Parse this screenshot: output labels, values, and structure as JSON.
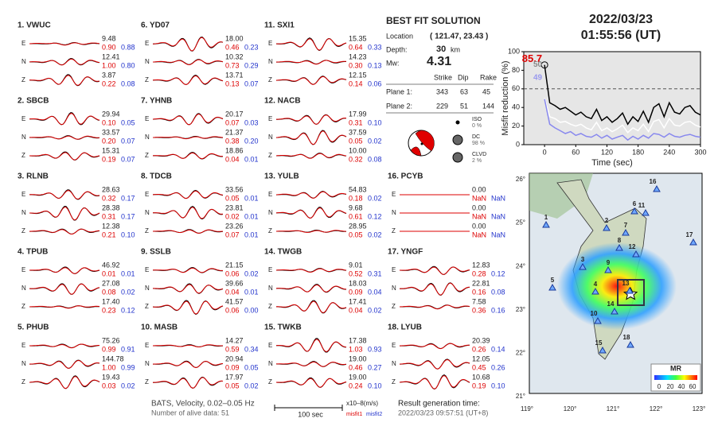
{
  "stations": [
    {
      "title": "1.  VWUC",
      "comps": [
        [
          "E",
          "9.48",
          "0.90",
          "0.88"
        ],
        [
          "N",
          "12.41",
          "1.00",
          "0.80"
        ],
        [
          "Z",
          "3.87",
          "0.22",
          "0.08"
        ]
      ]
    },
    {
      "title": "2.  SBCB",
      "comps": [
        [
          "E",
          "29.94",
          "0.10",
          "0.05"
        ],
        [
          "N",
          "33.57",
          "0.20",
          "0.07"
        ],
        [
          "Z",
          "15.31",
          "0.19",
          "0.07"
        ]
      ]
    },
    {
      "title": "3.  RLNB",
      "comps": [
        [
          "E",
          "28.63",
          "0.32",
          "0.17"
        ],
        [
          "N",
          "28.38",
          "0.31",
          "0.17"
        ],
        [
          "Z",
          "12.38",
          "0.21",
          "0.10"
        ]
      ]
    },
    {
      "title": "4.  TPUB",
      "comps": [
        [
          "E",
          "46.92",
          "0.01",
          "0.01"
        ],
        [
          "N",
          "27.08",
          "0.08",
          "0.02"
        ],
        [
          "Z",
          "17.40",
          "0.23",
          "0.12"
        ]
      ]
    },
    {
      "title": "5.  PHUB",
      "comps": [
        [
          "E",
          "75.26",
          "0.99",
          "0.91"
        ],
        [
          "N",
          "144.78",
          "1.00",
          "0.99"
        ],
        [
          "Z",
          "19.43",
          "0.03",
          "0.02"
        ]
      ]
    },
    {
      "title": "6.  YD07",
      "comps": [
        [
          "E",
          "18.00",
          "0.46",
          "0.23"
        ],
        [
          "N",
          "10.32",
          "0.73",
          "0.29"
        ],
        [
          "Z",
          "13.71",
          "0.13",
          "0.07"
        ]
      ]
    },
    {
      "title": "7.  YHNB",
      "comps": [
        [
          "E",
          "20.17",
          "0.07",
          "0.03"
        ],
        [
          "N",
          "21.37",
          "0.38",
          "0.20"
        ],
        [
          "Z",
          "18.86",
          "0.04",
          "0.01"
        ]
      ]
    },
    {
      "title": "8.  TDCB",
      "comps": [
        [
          "E",
          "33.56",
          "0.05",
          "0.01"
        ],
        [
          "N",
          "23.81",
          "0.02",
          "0.01"
        ],
        [
          "Z",
          "23.26",
          "0.07",
          "0.01"
        ]
      ]
    },
    {
      "title": "9.  SSLB",
      "comps": [
        [
          "E",
          "21.15",
          "0.06",
          "0.02"
        ],
        [
          "N",
          "39.66",
          "0.04",
          "0.01"
        ],
        [
          "Z",
          "41.57",
          "0.06",
          "0.00"
        ]
      ]
    },
    {
      "title": "10. MASB",
      "comps": [
        [
          "E",
          "14.27",
          "0.59",
          "0.34"
        ],
        [
          "N",
          "20.94",
          "0.09",
          "0.05"
        ],
        [
          "Z",
          "17.97",
          "0.05",
          "0.02"
        ]
      ]
    },
    {
      "title": "11. SXI1",
      "comps": [
        [
          "E",
          "15.35",
          "0.64",
          "0.33"
        ],
        [
          "N",
          "14.23",
          "0.30",
          "0.13"
        ],
        [
          "Z",
          "12.15",
          "0.14",
          "0.06"
        ]
      ]
    },
    {
      "title": "12. NACB",
      "comps": [
        [
          "E",
          "17.99",
          "0.31",
          "0.10"
        ],
        [
          "N",
          "37.59",
          "0.05",
          "0.02"
        ],
        [
          "Z",
          "10.00",
          "0.32",
          "0.08"
        ]
      ]
    },
    {
      "title": "13. YULB",
      "comps": [
        [
          "E",
          "54.83",
          "0.18",
          "0.02"
        ],
        [
          "N",
          "9.68",
          "0.61",
          "0.12"
        ],
        [
          "Z",
          "28.95",
          "0.05",
          "0.02"
        ]
      ]
    },
    {
      "title": "14. TWGB",
      "comps": [
        [
          "E",
          "9.01",
          "0.52",
          "0.31"
        ],
        [
          "N",
          "18.03",
          "0.09",
          "0.04"
        ],
        [
          "Z",
          "17.41",
          "0.04",
          "0.02"
        ]
      ]
    },
    {
      "title": "15. TWKB",
      "comps": [
        [
          "E",
          "17.38",
          "1.03",
          "0.93"
        ],
        [
          "N",
          "19.00",
          "0.46",
          "0.27"
        ],
        [
          "Z",
          "19.00",
          "0.24",
          "0.10"
        ]
      ]
    },
    {
      "title": "16. PCYB",
      "comps": [
        [
          "E",
          "0.00",
          "NaN",
          "NaN"
        ],
        [
          "N",
          "0.00",
          "NaN",
          "NaN"
        ],
        [
          "Z",
          "0.00",
          "NaN",
          "NaN"
        ]
      ]
    },
    {
      "title": "17. YNGF",
      "comps": [
        [
          "E",
          "12.83",
          "0.28",
          "0.12"
        ],
        [
          "N",
          "22.81",
          "0.16",
          "0.08"
        ],
        [
          "Z",
          "7.58",
          "0.36",
          "0.16"
        ]
      ]
    },
    {
      "title": "18. LYUB",
      "comps": [
        [
          "E",
          "20.39",
          "0.26",
          "0.14"
        ],
        [
          "N",
          "12.05",
          "0.45",
          "0.26"
        ],
        [
          "Z",
          "10.68",
          "0.19",
          "0.10"
        ]
      ]
    }
  ],
  "solution": {
    "title": "BEST FIT SOLUTION",
    "location_label": "Location",
    "location": "( 121.47, 23.43 )",
    "depth_label": "Depth:",
    "depth": "30",
    "depth_unit": "km",
    "mw_label": "Mw:",
    "mw": "4.31",
    "columns": [
      "Strike",
      "Dip",
      "Rake"
    ],
    "planes": [
      [
        "Plane 1:",
        "343",
        "63",
        "45"
      ],
      [
        "Plane 2:",
        "229",
        "51",
        "144"
      ]
    ],
    "components": [
      [
        "ISO",
        "0 %"
      ],
      [
        "DC",
        "98 %"
      ],
      [
        "CLVD",
        "2 %"
      ]
    ]
  },
  "date": "2022/03/23",
  "time": "01:55:56  (UT)",
  "chart_data": {
    "type": "line",
    "xlabel": "Time (sec)",
    "ylabel": "Misfit reduction (%)",
    "xlim": [
      -40,
      300
    ],
    "xticks": [
      0,
      60,
      120,
      180,
      240,
      300
    ],
    "ylim": [
      0,
      100
    ],
    "yticks": [
      0,
      20,
      40,
      60,
      80,
      100
    ],
    "threshold": 60,
    "annotations": [
      {
        "text": "85.7",
        "x": 0,
        "y": 85.7,
        "color": "#d00"
      },
      {
        "text": "50",
        "x": 0,
        "y": 80,
        "color": "#888"
      },
      {
        "text": "49",
        "x": 0,
        "y": 66,
        "color": "#9999ee"
      }
    ],
    "x": [
      0,
      10,
      20,
      30,
      40,
      50,
      60,
      70,
      80,
      90,
      100,
      110,
      120,
      130,
      140,
      150,
      160,
      170,
      180,
      190,
      200,
      210,
      220,
      230,
      240,
      250,
      260,
      270,
      280,
      290,
      300
    ],
    "series": [
      {
        "color": "#ffffff",
        "values": [
          50,
          30,
          28,
          24,
          25,
          22,
          20,
          22,
          18,
          16,
          24,
          15,
          18,
          14,
          17,
          21,
          13,
          18,
          15,
          22,
          14,
          25,
          27,
          18,
          28,
          21,
          20,
          24,
          25,
          21,
          19
        ]
      },
      {
        "color": "#8888ee",
        "values": [
          49,
          22,
          18,
          15,
          12,
          14,
          10,
          12,
          9,
          8,
          11,
          7,
          10,
          6,
          8,
          10,
          5,
          9,
          6,
          10,
          7,
          12,
          11,
          8,
          12,
          9,
          8,
          10,
          11,
          9,
          8
        ]
      },
      {
        "color": "#000000",
        "values": [
          85.7,
          45,
          42,
          38,
          40,
          36,
          32,
          35,
          30,
          28,
          38,
          26,
          30,
          24,
          28,
          34,
          22,
          30,
          25,
          36,
          24,
          40,
          44,
          30,
          45,
          35,
          33,
          40,
          42,
          35,
          32
        ]
      }
    ]
  },
  "map": {
    "lonticks": [
      "119°",
      "120°",
      "121°",
      "122°",
      "123°"
    ],
    "latticks": [
      "26°",
      "25°",
      "24°",
      "23°",
      "22°",
      "21°"
    ],
    "station_labels": [
      "1",
      "2",
      "3",
      "4",
      "5",
      "6",
      "7",
      "8",
      "9",
      "10",
      "11",
      "12",
      "13",
      "14",
      "15",
      "16",
      "17",
      "18"
    ],
    "colorbar_title": "MR",
    "colorbar_ticks": [
      "0",
      "20",
      "40",
      "60"
    ]
  },
  "footer": {
    "filter": "BATS, Velocity, 0.02–0.05 Hz",
    "alive": "Number of alive data: 51",
    "scale": "100 sec",
    "units": "x10–8(m/s)",
    "misfit1": "misfit1",
    "misfit2": "misfit2",
    "gen_label": "Result generation time:",
    "gen_time": "2022/03/23 09:57:51 (UT+8)"
  }
}
